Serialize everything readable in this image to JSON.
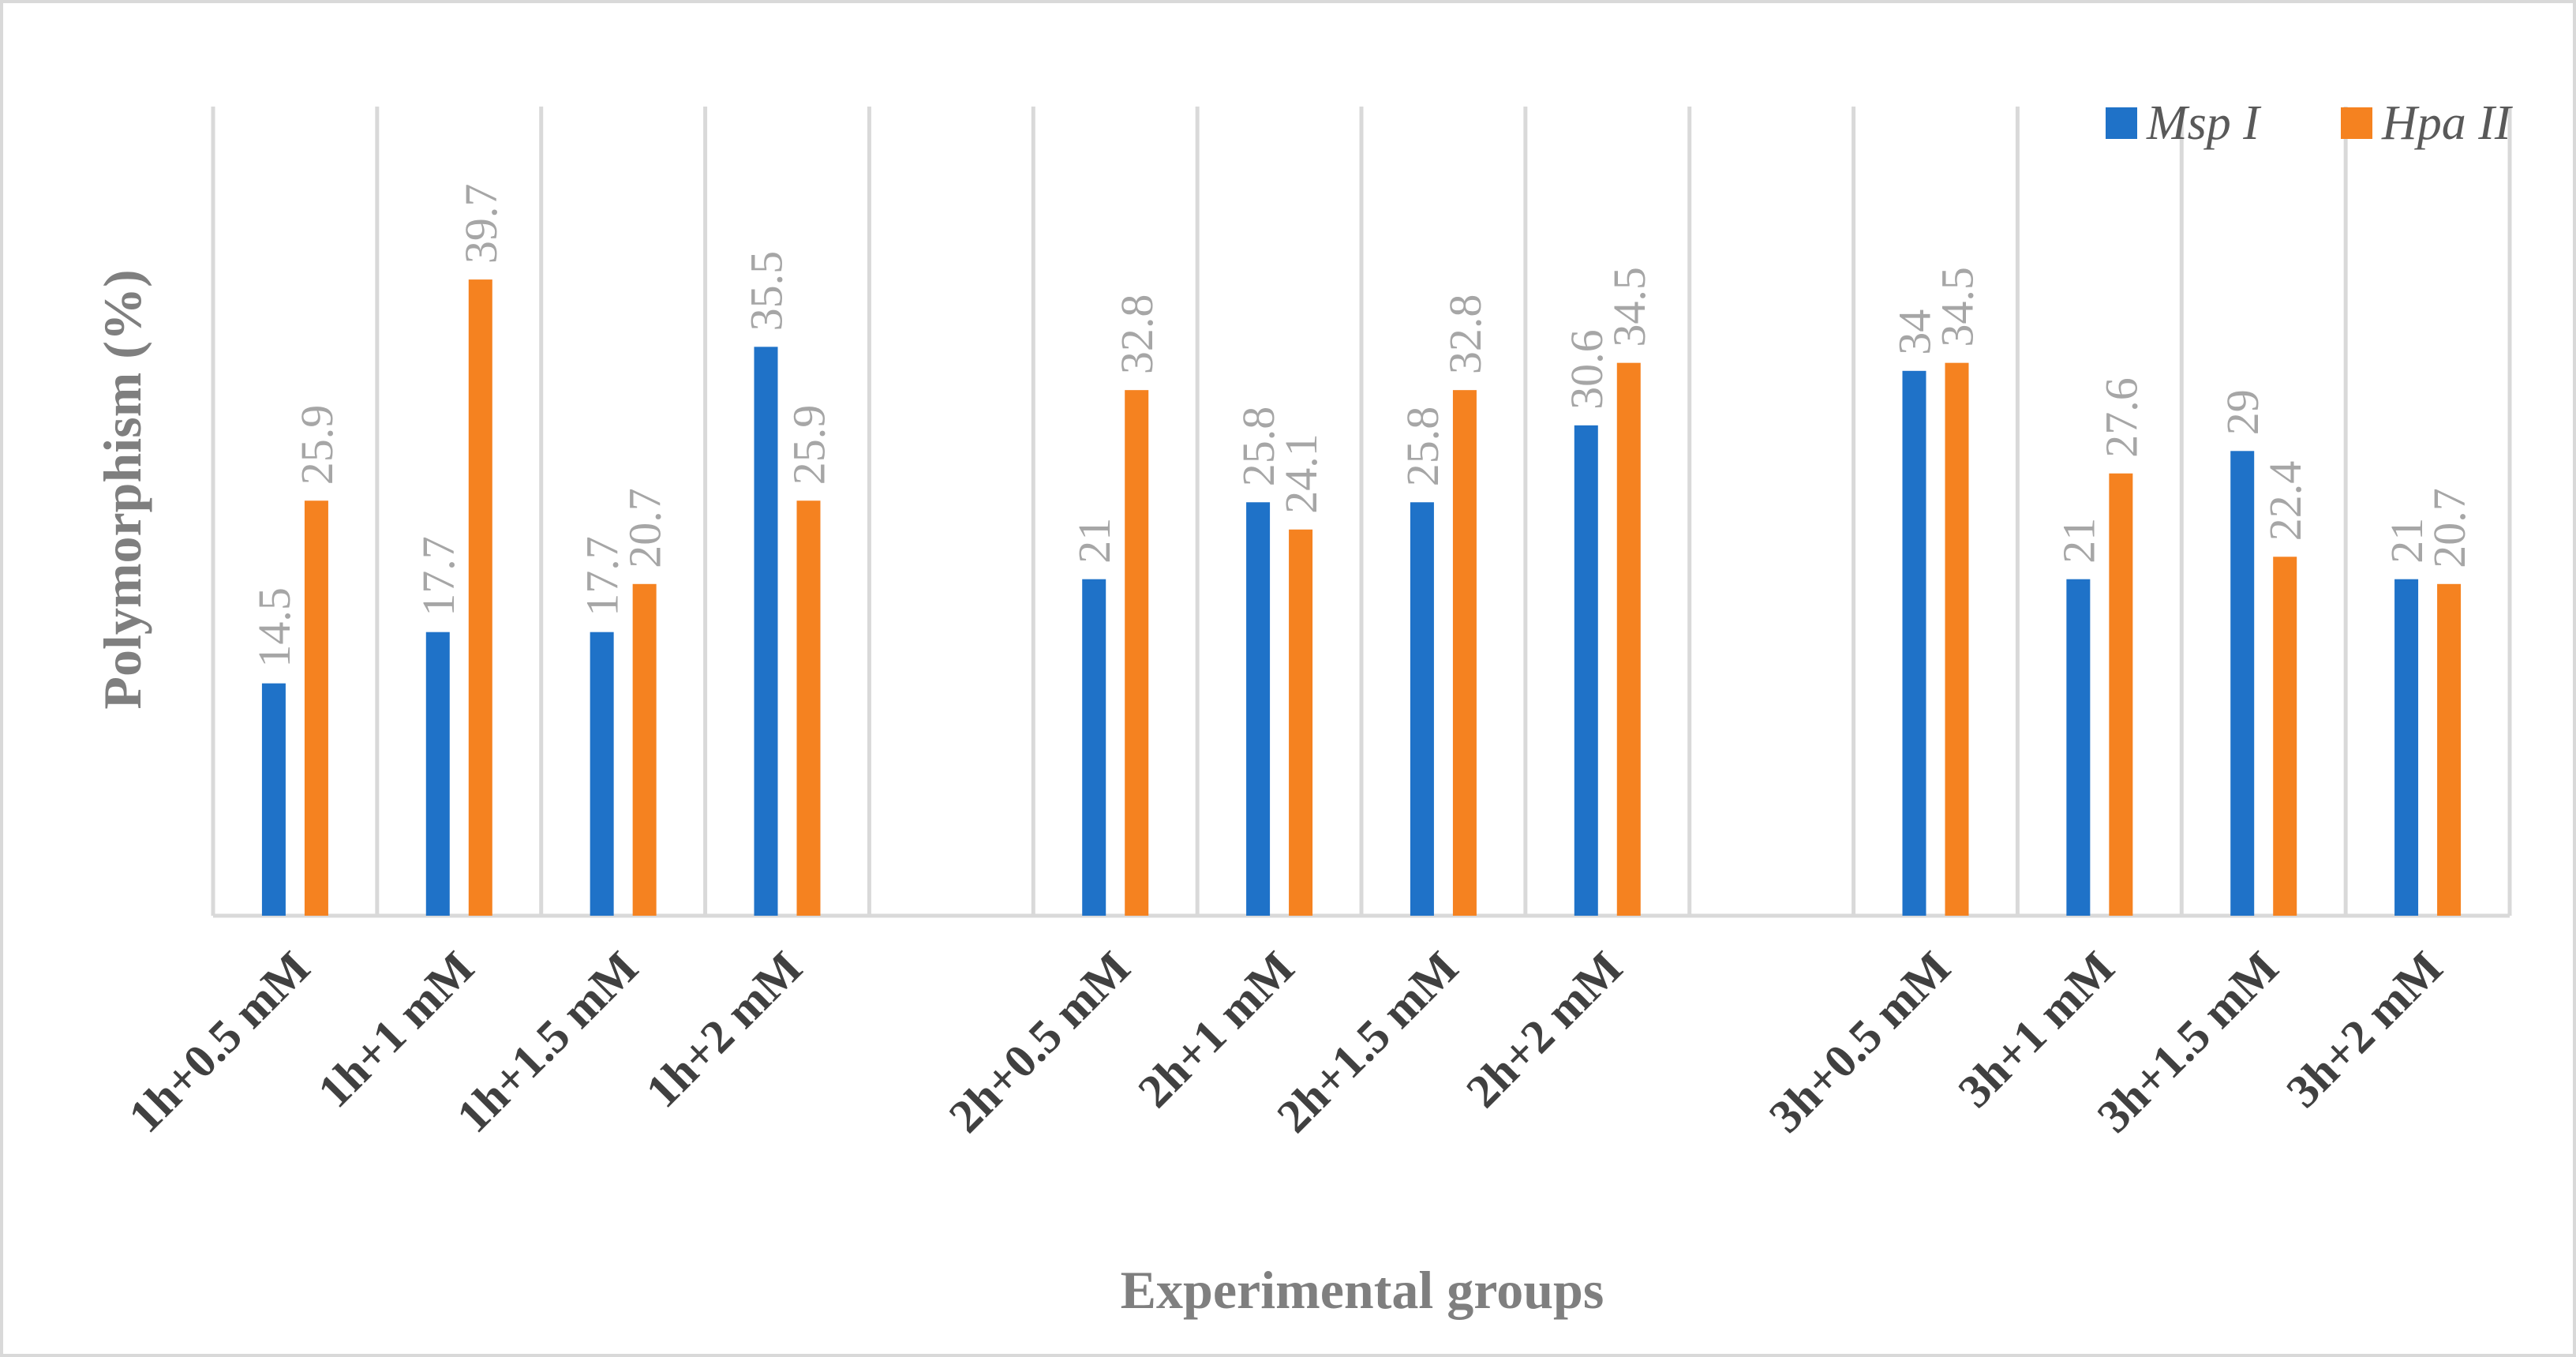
{
  "chart_data": {
    "type": "bar",
    "title": "",
    "xlabel": "Experimental groups",
    "ylabel": "Polymorphism (%)",
    "ylim": [
      0,
      45
    ],
    "grid": "vertical",
    "legend_position": "top-right",
    "categories": [
      "1h+0.5 mM",
      "1h+1 mM",
      "1h+1.5 mM",
      "1h+2 mM",
      "",
      "2h+0.5 mM",
      "2h+1 mM",
      "2h+1.5 mM",
      "2h+2 mM",
      "",
      "3h+0.5 mM",
      "3h+1 mM",
      "3h+1.5 mM",
      "3h+2 mM"
    ],
    "series": [
      {
        "name": "Msp I",
        "color": "#1f72c8",
        "values": [
          14.5,
          17.7,
          17.7,
          35.5,
          null,
          21,
          25.8,
          25.8,
          30.6,
          null,
          34,
          21,
          29,
          21
        ]
      },
      {
        "name": "Hpa II",
        "color": "#f58220",
        "values": [
          25.9,
          39.7,
          20.7,
          25.9,
          null,
          32.8,
          24.1,
          32.8,
          34.5,
          null,
          34.5,
          27.6,
          22.4,
          20.7
        ]
      }
    ]
  }
}
